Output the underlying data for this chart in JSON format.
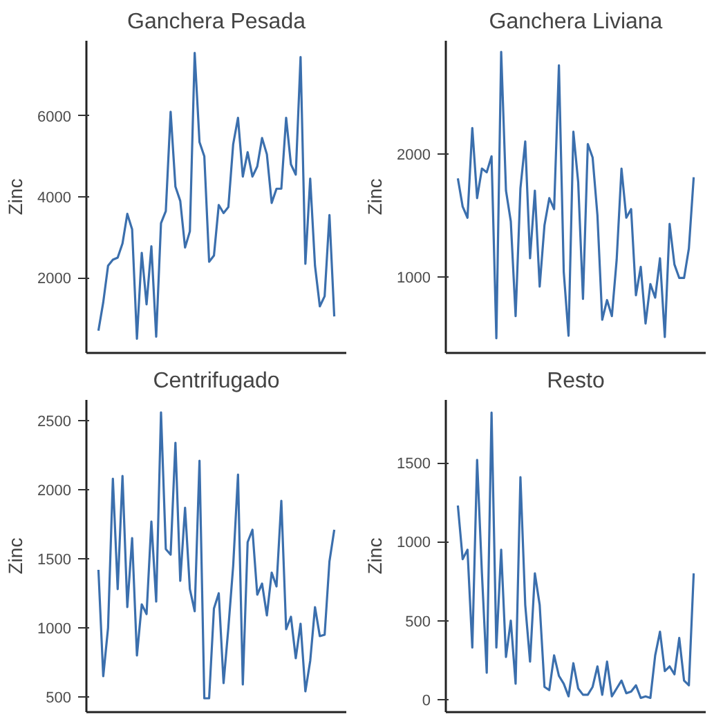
{
  "chart_data": [
    {
      "type": "line",
      "title": "Ganchera Pesada",
      "ylabel": "Zinc",
      "categories": [
        null,
        null,
        null,
        null,
        null,
        null,
        null,
        null,
        null,
        null,
        null,
        null,
        null,
        null,
        null,
        null,
        null,
        null,
        null,
        null,
        null,
        null,
        null,
        null,
        null,
        null,
        null,
        null,
        null,
        null,
        null,
        null,
        null,
        null,
        null,
        null,
        null,
        null,
        null,
        null,
        null,
        null,
        null,
        null,
        null,
        null,
        null,
        null,
        null,
        null
      ],
      "color": "#3b6fad",
      "values": [
        700,
        1400,
        2300,
        2450,
        2500,
        2850,
        3580,
        3200,
        500,
        2620,
        1350,
        2780,
        550,
        3350,
        3650,
        6100,
        4250,
        3900,
        2750,
        3150,
        7550,
        5350,
        5000,
        2400,
        2550,
        3800,
        3600,
        3750,
        5300,
        5950,
        4500,
        5100,
        4500,
        4750,
        5450,
        5050,
        3850,
        4200,
        4200,
        5950,
        4800,
        4550,
        7450,
        2350,
        4450,
        2300,
        1300,
        1550,
        3550,
        1050
      ],
      "ylim": [
        150,
        7850
      ],
      "yticks": [
        2000,
        4000,
        6000
      ],
      "tick_labels": "y",
      "grid": false
    },
    {
      "type": "line",
      "title": "Ganchera Liviana",
      "ylabel": "Zinc",
      "categories": [
        null,
        null,
        null,
        null,
        null,
        null,
        null,
        null,
        null,
        null,
        null,
        null,
        null,
        null,
        null,
        null,
        null,
        null,
        null,
        null,
        null,
        null,
        null,
        null,
        null,
        null,
        null,
        null,
        null,
        null,
        null,
        null,
        null,
        null,
        null,
        null,
        null,
        null,
        null,
        null,
        null,
        null,
        null,
        null,
        null,
        null,
        null,
        null,
        null,
        null
      ],
      "color": "#3b6fad",
      "values": [
        1800,
        1570,
        1480,
        2210,
        1640,
        1880,
        1850,
        1980,
        500,
        2830,
        1700,
        1450,
        680,
        1720,
        2100,
        1150,
        1700,
        920,
        1420,
        1640,
        1550,
        2720,
        1040,
        520,
        2180,
        1770,
        820,
        2080,
        1970,
        1500,
        650,
        810,
        680,
        1140,
        1880,
        1480,
        1550,
        850,
        1080,
        620,
        940,
        830,
        1150,
        510,
        1430,
        1100,
        990,
        990,
        1230,
        1810
      ],
      "ylim": [
        380,
        2920
      ],
      "yticks": [
        1000,
        2000
      ],
      "tick_labels": "y",
      "grid": false
    },
    {
      "type": "line",
      "title": "Centrifugado",
      "ylabel": "Zinc",
      "categories": [
        null,
        null,
        null,
        null,
        null,
        null,
        null,
        null,
        null,
        null,
        null,
        null,
        null,
        null,
        null,
        null,
        null,
        null,
        null,
        null,
        null,
        null,
        null,
        null,
        null,
        null,
        null,
        null,
        null,
        null,
        null,
        null,
        null,
        null,
        null,
        null,
        null,
        null,
        null,
        null,
        null,
        null,
        null,
        null,
        null,
        null,
        null,
        null,
        null,
        null
      ],
      "color": "#3b6fad",
      "values": [
        1420,
        650,
        1000,
        2080,
        1280,
        2100,
        1150,
        1650,
        800,
        1170,
        1100,
        1770,
        1190,
        2560,
        1570,
        1530,
        2340,
        1340,
        1870,
        1280,
        1120,
        2210,
        490,
        490,
        1140,
        1250,
        600,
        1000,
        1450,
        2110,
        590,
        1620,
        1710,
        1240,
        1320,
        1090,
        1400,
        1300,
        1920,
        990,
        1080,
        780,
        1030,
        540,
        760,
        1150,
        940,
        950,
        1480,
        1710
      ],
      "ylim": [
        390,
        2650
      ],
      "yticks": [
        500,
        1000,
        1500,
        2000,
        2500
      ],
      "tick_labels": "y",
      "grid": false
    },
    {
      "type": "line",
      "title": "Resto",
      "ylabel": "Zinc",
      "categories": [
        null,
        null,
        null,
        null,
        null,
        null,
        null,
        null,
        null,
        null,
        null,
        null,
        null,
        null,
        null,
        null,
        null,
        null,
        null,
        null,
        null,
        null,
        null,
        null,
        null,
        null,
        null,
        null,
        null,
        null,
        null,
        null,
        null,
        null,
        null,
        null,
        null,
        null,
        null,
        null,
        null,
        null,
        null,
        null,
        null,
        null,
        null,
        null,
        null,
        null
      ],
      "color": "#3b6fad",
      "values": [
        1230,
        890,
        950,
        330,
        1520,
        800,
        170,
        1820,
        330,
        950,
        270,
        500,
        100,
        1410,
        600,
        240,
        800,
        600,
        80,
        60,
        280,
        150,
        100,
        20,
        230,
        70,
        30,
        30,
        80,
        210,
        30,
        240,
        20,
        70,
        120,
        40,
        50,
        90,
        10,
        20,
        10,
        280,
        430,
        180,
        210,
        160,
        390,
        120,
        90,
        800
      ],
      "ylim": [
        -80,
        1900
      ],
      "yticks": [
        0,
        500,
        1000,
        1500
      ],
      "tick_labels": "y",
      "grid": false
    }
  ]
}
